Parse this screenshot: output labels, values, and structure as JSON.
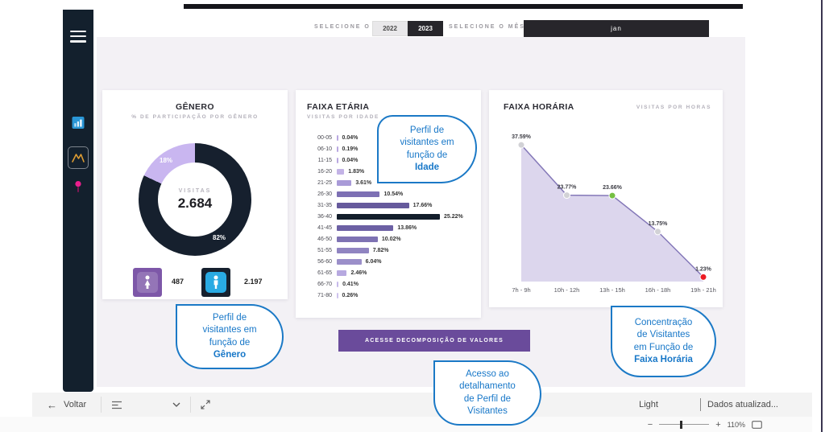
{
  "topbar": {
    "year_label": "SELECIONE O ANO",
    "year_options": {
      "y2022": "2022",
      "y2023": "2023"
    },
    "month_label": "SELECIONE O MÊS",
    "month_value": "jan"
  },
  "icons": {
    "back_arrow": "←",
    "minus": "−",
    "plus": "+",
    "names": [
      "hamburger-menu-icon",
      "bar-chart-icon",
      "line-chart-icon",
      "pin-icon",
      "uk-flag-icon",
      "brazil-flag-icon",
      "pages-icon",
      "chevron-down-icon",
      "expand-icon",
      "fit-screen-icon"
    ]
  },
  "chart_data": [
    {
      "type": "pie",
      "title": "GÊNERO",
      "subtitle": "% DE PARTICIPAÇÃO POR GÊNERO",
      "center_label": "VISITAS",
      "center_value": "2.684",
      "slices": [
        {
          "label": "18%",
          "value": 18,
          "color": "#c9b6f0"
        },
        {
          "label": "82%",
          "value": 82,
          "color": "#16202e"
        }
      ],
      "legend": [
        {
          "gender": "female",
          "count": "487",
          "tile_color": "#7d57a8"
        },
        {
          "gender": "male",
          "count": "2.197",
          "tile_color": "#16202e",
          "icon_color": "#29aae3"
        }
      ]
    },
    {
      "type": "bar",
      "title": "FAIXA ETÁRIA",
      "subtitle": "VISITAS POR IDADE",
      "categories": [
        "00-05",
        "06-10",
        "11-15",
        "16-20",
        "21-25",
        "26-30",
        "31-35",
        "36-40",
        "41-45",
        "46-50",
        "51-55",
        "56-60",
        "61-65",
        "66-70",
        "71-80"
      ],
      "values": [
        0.04,
        0.19,
        0.04,
        1.83,
        3.61,
        10.54,
        17.66,
        25.22,
        13.86,
        10.02,
        7.82,
        6.04,
        2.46,
        0.41,
        0.26
      ],
      "labels": [
        "0.04%",
        "0.19%",
        "0.04%",
        "1.83%",
        "3.61%",
        "10.54%",
        "17.66%",
        "25.22%",
        "13.86%",
        "10.02%",
        "7.82%",
        "6.04%",
        "2.46%",
        "0.41%",
        "0.26%"
      ],
      "colors": [
        "#b9a8e0",
        "#b9a8e0",
        "#b9a8e0",
        "#c3b3e6",
        "#a99bd8",
        "#7d70b4",
        "#665a9c",
        "#131e2b",
        "#6c60a4",
        "#7e72b3",
        "#9084c1",
        "#9b8fc9",
        "#b7a9e0",
        "#c7baea",
        "#cfc3ee"
      ],
      "xlim": [
        0,
        25.22
      ]
    },
    {
      "type": "area",
      "title": "FAIXA HORÁRIA",
      "subtitle": "VISITAS POR HORAS",
      "categories": [
        "7h - 9h",
        "10h - 12h",
        "13h - 15h",
        "16h - 18h",
        "19h - 21h"
      ],
      "values": [
        37.59,
        23.77,
        23.66,
        13.75,
        1.23
      ],
      "labels": [
        "37.59%",
        "23.77%",
        "23.66%",
        "13.75%",
        "1.23%"
      ],
      "point_colors": [
        "#d2d2d6",
        "#d2d2d6",
        "#76c043",
        "#d2d2d6",
        "#ec1c24"
      ],
      "line_color": "#8478b8",
      "fill_color": "#d3cce8"
    }
  ],
  "action_button": {
    "label": "ACESSE DECOMPOSIÇÃO DE VALORES"
  },
  "callouts": {
    "idade": {
      "lines": [
        "Perfil de",
        "visitantes em",
        "função de"
      ],
      "bold": "Idade"
    },
    "genero": {
      "lines": [
        "Perfil de",
        "visitantes em",
        "função de"
      ],
      "bold": "Gênero"
    },
    "horaria": {
      "lines": [
        "Concentração",
        "de Visitantes",
        "em Função de"
      ],
      "bold": "Faixa Horária"
    },
    "acesso": {
      "lines": [
        "Acesso ao",
        "detalhamento",
        "de Perfil de",
        "Visitantes"
      ],
      "bold": ""
    }
  },
  "bottombar": {
    "back_label": "Voltar",
    "theme_label": "Light",
    "status_label": "Dados atualizad...",
    "zoom_level": "110%"
  },
  "colors": {
    "accent_purple": "#6a4b9b",
    "callout_blue": "#1777c8",
    "sidebar_bg": "#13202d",
    "canvas_bg": "#f3f1f5",
    "selected_slicer_bg": "#27262b"
  }
}
